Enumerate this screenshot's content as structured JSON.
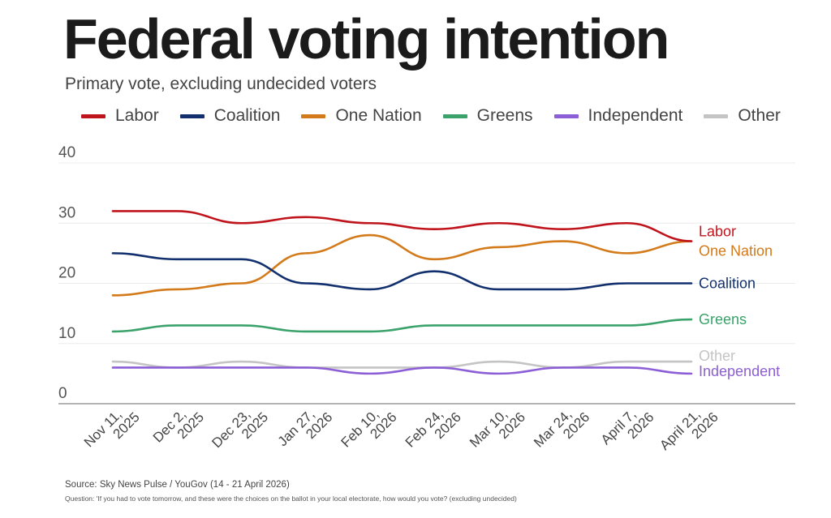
{
  "header": {
    "title": "Federal voting intention",
    "subtitle": "Primary vote, excluding undecided voters"
  },
  "footer": {
    "source": "Source: Sky News Pulse / YouGov (14 - 21 April 2026)",
    "question": "Question: 'If you had to vote tomorrow, and these were the choices on the ballot in your local electorate, how would you vote? (excluding undecided)"
  },
  "chart_data": {
    "type": "line",
    "title": "Federal voting intention",
    "subtitle": "Primary vote, excluding undecided voters",
    "xlabel": "",
    "ylabel": "",
    "ylim": [
      0,
      40
    ],
    "yticks": [
      0,
      10,
      20,
      30,
      40
    ],
    "grid": true,
    "legend_position": "top",
    "categories": [
      [
        "Nov 11,",
        "2025"
      ],
      [
        "Dec 2,",
        "2025"
      ],
      [
        "Dec 23,",
        "2025"
      ],
      [
        "Jan 27,",
        "2026"
      ],
      [
        "Feb 10,",
        "2026"
      ],
      [
        "Feb 24,",
        "2026"
      ],
      [
        "Mar 10,",
        "2026"
      ],
      [
        "Mar 24,",
        "2026"
      ],
      [
        "April 7,",
        "2026"
      ],
      [
        "April 21,",
        "2026"
      ]
    ],
    "series": [
      {
        "name": "Labor",
        "color": "#c0141c",
        "values": [
          32,
          32,
          30,
          31,
          30,
          29,
          30,
          29,
          30,
          27
        ]
      },
      {
        "name": "Coalition",
        "color": "#12306e",
        "values": [
          25,
          24,
          24,
          20,
          19,
          22,
          19,
          19,
          20,
          20
        ]
      },
      {
        "name": "One Nation",
        "color": "#d37a1a",
        "values": [
          18,
          19,
          20,
          25,
          28,
          24,
          26,
          27,
          25,
          27
        ]
      },
      {
        "name": "Greens",
        "color": "#3aa26a",
        "values": [
          12,
          13,
          13,
          12,
          12,
          13,
          13,
          13,
          13,
          14
        ]
      },
      {
        "name": "Independent",
        "color": "#8c5fd6",
        "values": [
          6,
          6,
          6,
          6,
          5,
          6,
          5,
          6,
          6,
          5
        ]
      },
      {
        "name": "Other",
        "color": "#c4c4c4",
        "values": [
          7,
          6,
          7,
          6,
          6,
          6,
          7,
          6,
          7,
          7
        ]
      }
    ],
    "end_labels": [
      {
        "series": "Labor",
        "text": "Labor"
      },
      {
        "series": "One Nation",
        "text": "One Nation"
      },
      {
        "series": "Coalition",
        "text": "Coalition"
      },
      {
        "series": "Greens",
        "text": "Greens"
      },
      {
        "series": "Other",
        "text": "Other"
      },
      {
        "series": "Independent",
        "text": "Independent"
      }
    ]
  }
}
